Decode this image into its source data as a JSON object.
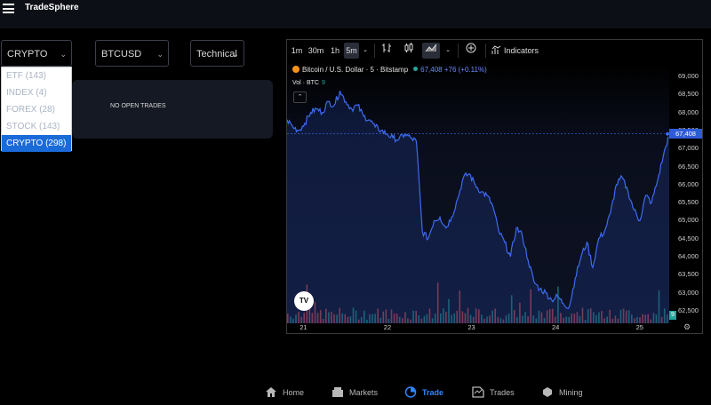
{
  "app": {
    "title": "TradeSphere"
  },
  "filters": {
    "market": {
      "value": "CRYPTO (298)"
    },
    "symbol": {
      "value": "BTCUSD"
    },
    "mode": {
      "value": "Technical"
    }
  },
  "market_dropdown": {
    "options": [
      {
        "label": "ETF (143)",
        "selected": false
      },
      {
        "label": "INDEX (4)",
        "selected": false
      },
      {
        "label": "FOREX (28)",
        "selected": false
      },
      {
        "label": "STOCK (143)",
        "selected": false
      },
      {
        "label": "CRYPTO (298)",
        "selected": true
      }
    ]
  },
  "trades_panel": {
    "empty_text": "NO OPEN TRADES"
  },
  "chart_toolbar": {
    "intervals": [
      "1m",
      "30m",
      "1h",
      "5m"
    ],
    "active_interval": "5m",
    "indicators_label": "Indicators"
  },
  "chart_legend": {
    "symbol_title": "Bitcoin / U.S. Dollar · 5 · Bitstamp",
    "price": "67,408",
    "change": "+76 (+0.11%)",
    "volume_label": "Vol · BTC",
    "volume_value": "9"
  },
  "colors": {
    "accent": "#2f5bd8",
    "line": "#3d6bf2",
    "up": "#26a69a",
    "down": "#ef5350",
    "active_nav": "#2e86ff"
  },
  "chart_data": {
    "type": "line",
    "x_ticks": [
      "21",
      "22",
      "23",
      "24",
      "25"
    ],
    "y_ticks": [
      "69,000",
      "68,500",
      "68,000",
      "67,500",
      "67,000",
      "66,500",
      "66,000",
      "65,500",
      "65,000",
      "64,500",
      "64,000",
      "63,500",
      "63,000",
      "62,500"
    ],
    "last_price_label": "67,408",
    "volume_label": "9",
    "ylim": [
      62300,
      69200
    ],
    "series": [
      {
        "values": [
          67800,
          67600,
          67500,
          67700,
          68000,
          68100,
          68000,
          68300,
          68200,
          68600,
          68300,
          68100,
          68200,
          67900,
          67800,
          67600,
          67500,
          67400,
          67300,
          67250,
          67400,
          67300,
          67200,
          64700,
          64500,
          65000,
          65100,
          64800,
          65100,
          65600,
          66200,
          66300,
          66000,
          65800,
          65700,
          65400,
          64700,
          64400,
          64000,
          64800,
          64600,
          63900,
          63300,
          63100,
          63000,
          62800,
          62900,
          62700,
          62600,
          63400,
          64000,
          64400,
          63700,
          64500,
          64700,
          65200,
          66000,
          66200,
          65800,
          65300,
          65000,
          65700,
          65500,
          66100,
          66800,
          67408
        ]
      }
    ]
  },
  "bottom_nav": {
    "items": [
      {
        "label": "Home",
        "icon": "home-icon"
      },
      {
        "label": "Markets",
        "icon": "markets-icon"
      },
      {
        "label": "Trade",
        "icon": "trade-icon",
        "active": true
      },
      {
        "label": "Trades",
        "icon": "trades-icon"
      },
      {
        "label": "Mining",
        "icon": "mining-icon"
      }
    ]
  }
}
